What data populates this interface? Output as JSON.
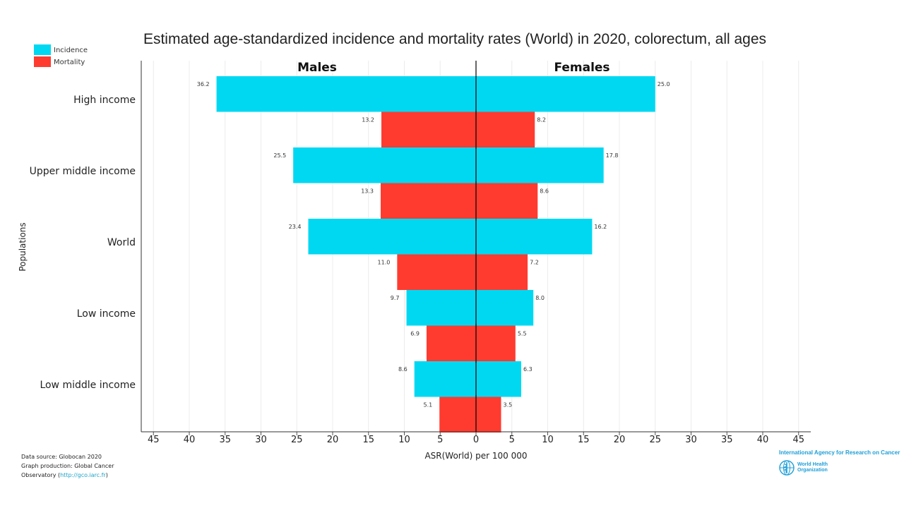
{
  "chart_data": {
    "type": "bar",
    "orientation": "horizontal-population-pyramid",
    "title": "Estimated age-standardized incidence and mortality rates (World) in 2020, colorectum, all ages",
    "xlabel": "ASR(World) per 100 000",
    "ylabel": "Populations",
    "sides": [
      "Males",
      "Females"
    ],
    "xlim": [
      0,
      45
    ],
    "x_ticks": [
      0,
      5,
      10,
      15,
      20,
      25,
      30,
      35,
      40,
      45
    ],
    "grid": true,
    "legend_position": "top-left",
    "categories": [
      "High income",
      "Upper middle income",
      "World",
      "Low income",
      "Low middle income"
    ],
    "series": [
      {
        "name": "Incidence",
        "color": "#00d8f2",
        "males": [
          36.2,
          25.5,
          23.4,
          9.7,
          8.6
        ],
        "females": [
          25.0,
          17.8,
          16.2,
          8.0,
          6.3
        ],
        "males_labels": [
          "36.2",
          "25.5",
          "23.4",
          "9.7",
          "8.6"
        ],
        "females_labels": [
          "25.0",
          "17.8",
          "16.2",
          "8.0",
          "6.3"
        ]
      },
      {
        "name": "Mortality",
        "color": "#ff3b30",
        "males": [
          13.2,
          13.3,
          11.0,
          6.9,
          5.1
        ],
        "females": [
          8.2,
          8.6,
          7.2,
          5.5,
          3.5
        ],
        "males_labels": [
          "13.2",
          "13.3",
          "11.0",
          "6.9",
          "5.1"
        ],
        "females_labels": [
          "8.2",
          "8.6",
          "7.2",
          "5.5",
          "3.5"
        ]
      }
    ]
  },
  "source": {
    "line1": "Data source: Globocan 2020",
    "line2": "Graph production: Global Cancer",
    "line3_prefix": "Observatory (",
    "line3_link": "http://gco.iarc.fr",
    "line3_suffix": ")"
  },
  "logo": {
    "iarc": "International Agency for Research on Cancer",
    "who_line1": "World Health",
    "who_line2": "Organization",
    "colors": {
      "text": "#1e9fd8"
    }
  }
}
